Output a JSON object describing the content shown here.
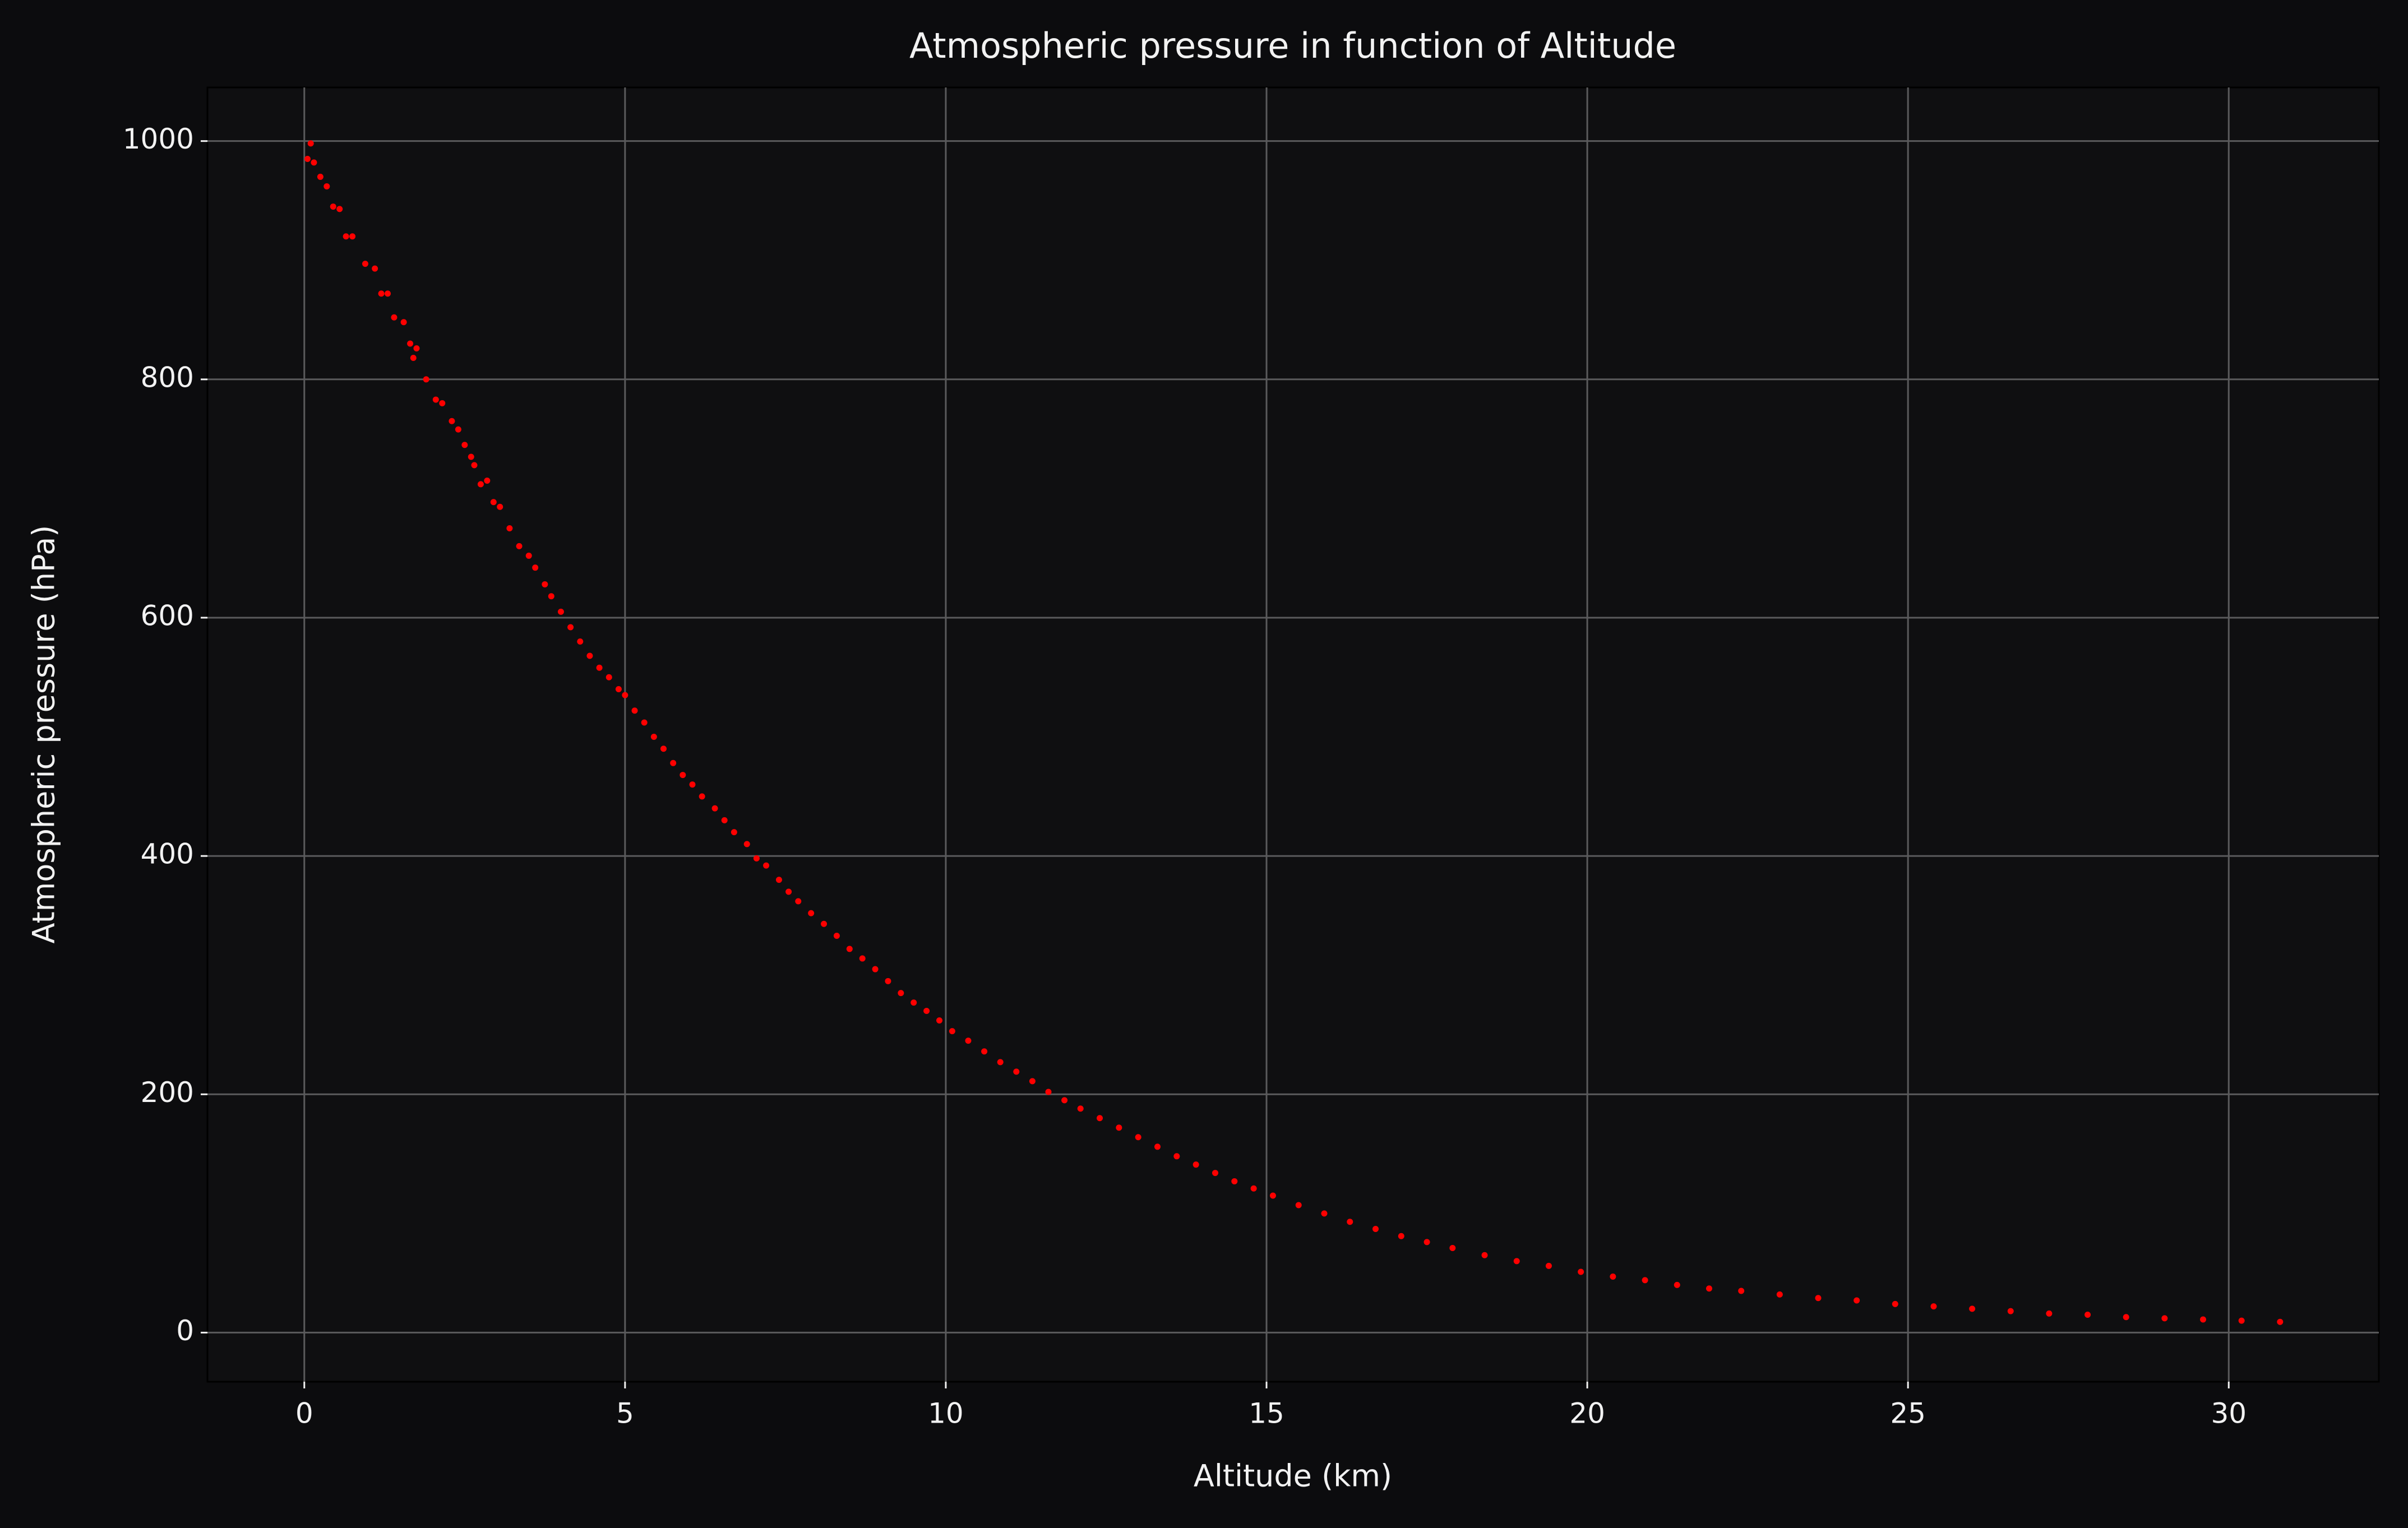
{
  "chart_data": {
    "type": "scatter",
    "title": "Atmospheric pressure in function of Altitude",
    "xlabel": "Altitude (km)",
    "ylabel": "Atmospheric pressure (hPa)",
    "color": "#ff0000",
    "grid": true,
    "xlim": [
      -1.51,
      32.34
    ],
    "ylim": [
      -41.2,
      1045
    ],
    "xticks": [
      0,
      5,
      10,
      15,
      20,
      25,
      30
    ],
    "yticks": [
      0,
      200,
      400,
      600,
      800,
      1000
    ],
    "x": [
      0.05,
      0.1,
      0.15,
      0.25,
      0.35,
      0.45,
      0.55,
      0.65,
      0.75,
      0.95,
      1.1,
      1.2,
      1.3,
      1.4,
      1.55,
      1.65,
      1.7,
      1.75,
      1.9,
      2.05,
      2.15,
      2.3,
      2.4,
      2.5,
      2.6,
      2.65,
      2.75,
      2.85,
      2.95,
      3.05,
      3.2,
      3.35,
      3.5,
      3.6,
      3.75,
      3.85,
      4.0,
      4.15,
      4.3,
      4.45,
      4.6,
      4.75,
      4.9,
      5.0,
      5.15,
      5.3,
      5.45,
      5.6,
      5.75,
      5.9,
      6.05,
      6.2,
      6.4,
      6.55,
      6.7,
      6.9,
      7.05,
      7.2,
      7.4,
      7.55,
      7.7,
      7.9,
      8.1,
      8.3,
      8.5,
      8.7,
      8.9,
      9.1,
      9.3,
      9.5,
      9.7,
      9.9,
      10.1,
      10.35,
      10.6,
      10.85,
      11.1,
      11.35,
      11.6,
      11.85,
      12.1,
      12.4,
      12.7,
      13.0,
      13.3,
      13.6,
      13.9,
      14.2,
      14.5,
      14.8,
      15.1,
      15.5,
      15.9,
      16.3,
      16.7,
      17.1,
      17.5,
      17.9,
      18.4,
      18.9,
      19.4,
      19.9,
      20.4,
      20.9,
      21.4,
      21.9,
      22.4,
      23.0,
      23.6,
      24.2,
      24.8,
      25.4,
      26.0,
      26.6,
      27.2,
      27.8,
      28.4,
      29.0,
      29.6,
      30.2,
      30.8
    ],
    "values": [
      985,
      998,
      982,
      970,
      962,
      945,
      943,
      920,
      920,
      897,
      893,
      872,
      872,
      852,
      848,
      830,
      818,
      826,
      800,
      783,
      780,
      765,
      758,
      745,
      735,
      728,
      712,
      715,
      697,
      693,
      675,
      660,
      652,
      642,
      628,
      618,
      605,
      592,
      580,
      568,
      558,
      550,
      540,
      535,
      522,
      512,
      500,
      490,
      478,
      468,
      460,
      450,
      440,
      430,
      420,
      410,
      398,
      392,
      380,
      370,
      362,
      352,
      343,
      333,
      322,
      314,
      305,
      295,
      285,
      277,
      270,
      262,
      253,
      245,
      236,
      227,
      219,
      211,
      202,
      195,
      188,
      180,
      172,
      164,
      156,
      148,
      141,
      134,
      127,
      121,
      115,
      107,
      100,
      93,
      87,
      81,
      76,
      71,
      65,
      60,
      56,
      51,
      47,
      44,
      40,
      37,
      35,
      32,
      29,
      27,
      24,
      22,
      20,
      18,
      16,
      15,
      13,
      12,
      11,
      10,
      9
    ]
  }
}
